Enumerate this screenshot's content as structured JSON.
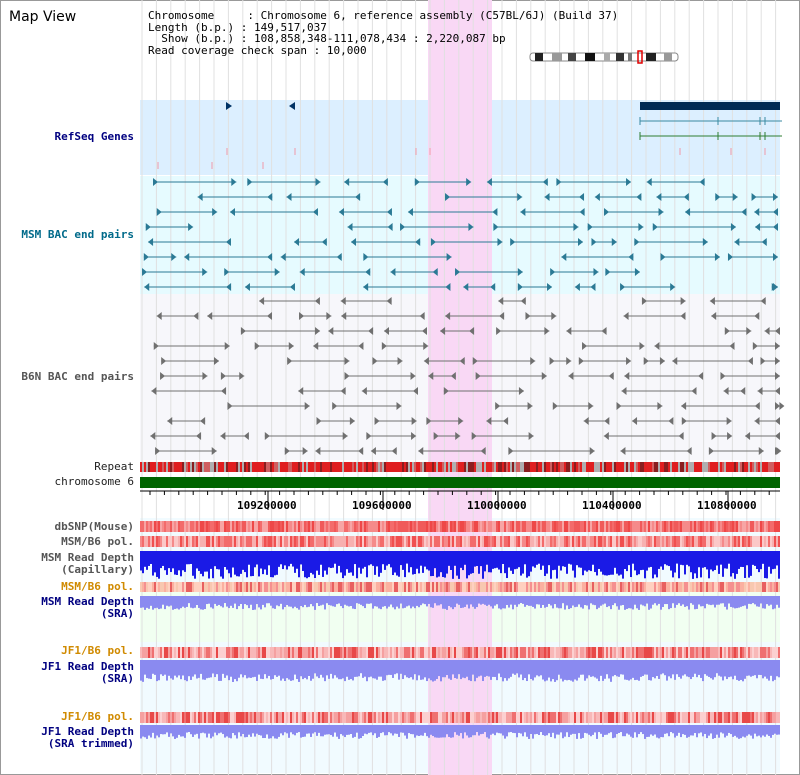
{
  "title": "Map View",
  "info": {
    "chromosome_label": "Chromosome",
    "chromosome_value": "Chromosome 6, reference assembly (C57BL/6J) (Build 37)",
    "length_label": "Length (b.p.)",
    "length_value": "149,517,037",
    "show_label": "Show (b.p.)",
    "show_value": "108,858,348-111,078,434 : 2,220,087 bp",
    "coverage_label": "Read coverage check span",
    "coverage_value": "10,000"
  },
  "tracks": {
    "refseq": "RefSeq Genes",
    "msm_bac": "MSM BAC end pairs",
    "b6n_bac": "B6N BAC end pairs",
    "repeat": "Repeat",
    "chromosome": "chromosome 6",
    "dbsnp": "dbSNP(Mouse)",
    "msm_b6_pol": "MSM/B6 pol.",
    "msm_depth_cap_1": "MSM Read Depth",
    "msm_depth_cap_2": "(Capillary)",
    "msm_b6_pol_2": "MSM/B6 pol.",
    "msm_depth_sra_1": "MSM Read Depth",
    "msm_depth_sra_2": "(SRA)",
    "jf1_b6_pol": "JF1/B6 pol.",
    "jf1_depth_sra_1": "JF1 Read Depth",
    "jf1_depth_sra_2": "(SRA)",
    "jf1_b6_pol_2": "JF1/B6 pol.",
    "jf1_depth_trim_1": "JF1 Read Depth",
    "jf1_depth_trim_2": "(SRA trimmed)"
  },
  "axis": {
    "ticks": [
      "109200000",
      "109600000",
      "110000000",
      "110400000",
      "110800000"
    ]
  },
  "colors": {
    "highlight": "#f9d8f5",
    "refseq_bg": "#dcefff",
    "bac_bg": "#e6fbff",
    "msm_bac": "#2b7a95",
    "b6n_bac": "#707070",
    "chromosome_bar": "#006400",
    "depth_blue": "#1a1ae6",
    "depth_light": "#8a8af0"
  }
}
